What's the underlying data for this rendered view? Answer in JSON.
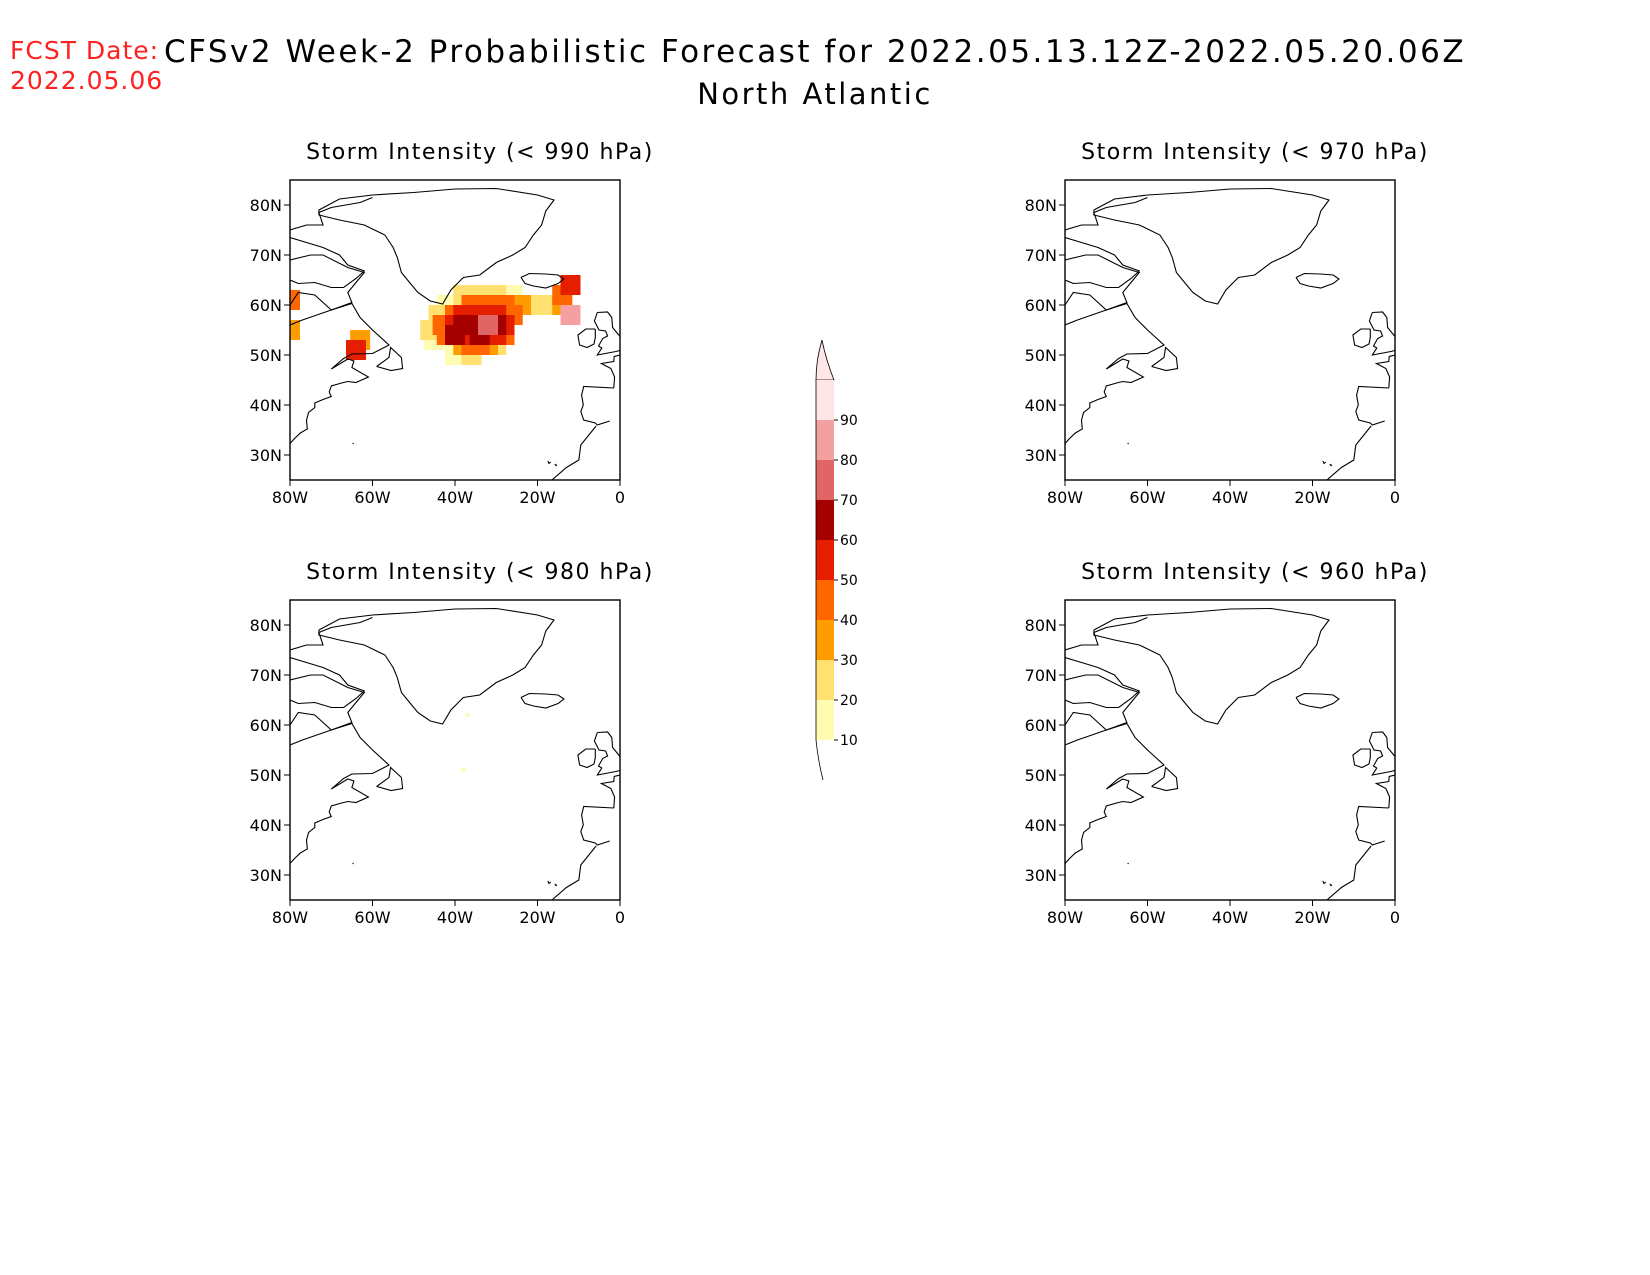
{
  "header": {
    "fcst_label": "FCST Date:",
    "fcst_date": "2022.05.06",
    "title": "CFSv2 Week-2 Probabilistic Forecast for 2022.05.13.12Z-2022.05.20.06Z",
    "subtitle": "North Atlantic"
  },
  "panels": [
    {
      "title": "Storm Intensity (< 990 hPa)",
      "has_data": true
    },
    {
      "title": "Storm Intensity (< 970 hPa)",
      "has_data": false
    },
    {
      "title": "Storm Intensity (< 980 hPa)",
      "has_data": "trace"
    },
    {
      "title": "Storm Intensity (< 960 hPa)",
      "has_data": false
    }
  ],
  "axes": {
    "lat_labels": [
      "80N",
      "70N",
      "60N",
      "50N",
      "40N",
      "30N"
    ],
    "lat_values": [
      80,
      70,
      60,
      50,
      40,
      30
    ],
    "lon_labels": [
      "80W",
      "60W",
      "40W",
      "20W",
      "0"
    ],
    "lon_values": [
      -80,
      -60,
      -40,
      -20,
      0
    ],
    "lat_range": [
      25,
      85
    ],
    "lon_range": [
      -80,
      0
    ]
  },
  "colorbar": {
    "levels": [
      "90",
      "80",
      "70",
      "60",
      "50",
      "40",
      "30",
      "20",
      "10"
    ],
    "colors": [
      "#ffe6e6",
      "#f4a0a0",
      "#e06565",
      "#a50000",
      "#e61e00",
      "#ff6600",
      "#ff9c00",
      "#ffe070",
      "#fffbb0"
    ]
  },
  "colors": {
    "fcst": "#ff2020",
    "coast": "#000000"
  }
}
